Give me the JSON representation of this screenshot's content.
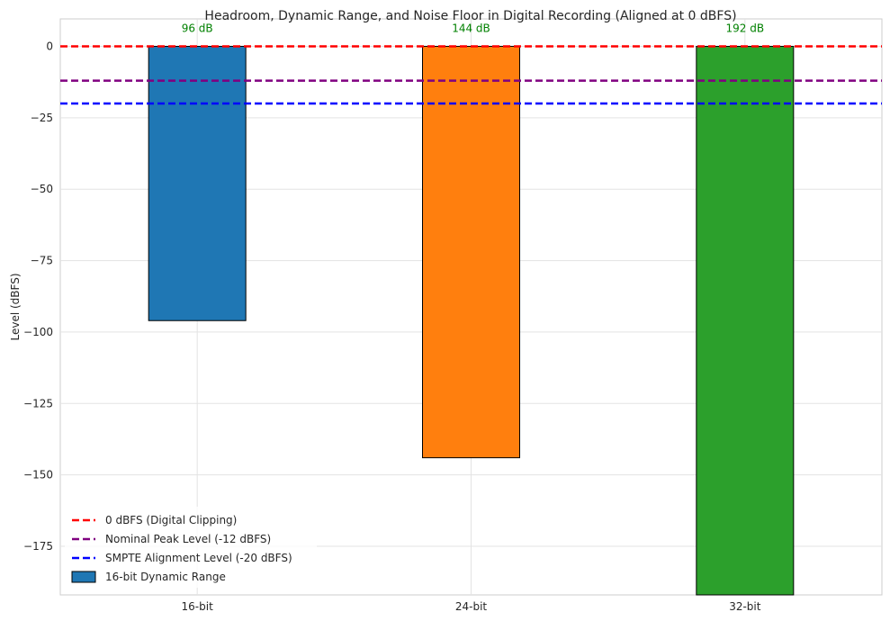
{
  "chart_data": {
    "type": "bar",
    "title": "Headroom, Dynamic Range, and Noise Floor in Digital Recording (Aligned at 0 dBFS)",
    "xlabel": "",
    "ylabel": "Level (dBFS)",
    "categories": [
      "16-bit",
      "24-bit",
      "32-bit"
    ],
    "series": [
      {
        "name": "16-bit Dynamic Range",
        "bottom_values": [
          -96,
          -144,
          -192
        ],
        "top_values": [
          0,
          0,
          0
        ],
        "colors": [
          "#1f77b4",
          "#ff7f0e",
          "#2ca02c"
        ]
      }
    ],
    "data_labels": [
      "96 dB",
      "144 dB",
      "192 dB"
    ],
    "data_label_color": "#008000",
    "reference_lines": [
      {
        "name": "0 dBFS (Digital Clipping)",
        "y": 0,
        "color": "#ff0000",
        "style": "dashed"
      },
      {
        "name": "Nominal Peak Level (-12 dBFS)",
        "y": -12,
        "color": "#800080",
        "style": "dashed"
      },
      {
        "name": "SMPTE Alignment Level (-20 dBFS)",
        "y": -20,
        "color": "#0000ff",
        "style": "dashed"
      }
    ],
    "ylim": [
      -192,
      9.6
    ],
    "yticks": [
      0,
      -25,
      -50,
      -75,
      -100,
      -125,
      -150,
      -175
    ],
    "ytick_labels": [
      "0",
      "−25",
      "−50",
      "−75",
      "−100",
      "−125",
      "−150",
      "−175"
    ],
    "grid": true,
    "legend_position": "bottom-left"
  }
}
